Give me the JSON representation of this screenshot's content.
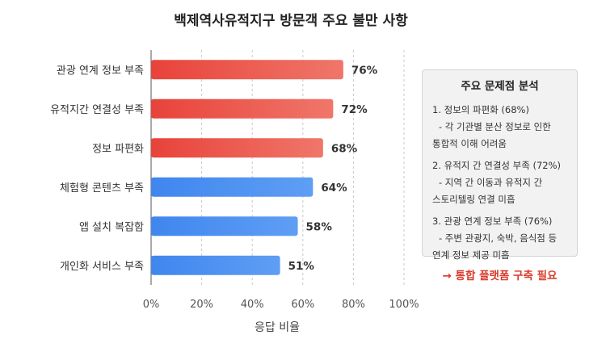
{
  "chart_data": {
    "type": "bar",
    "orientation": "horizontal",
    "title": "백제역사유적지구 방문객 주요 불만 사항",
    "xlabel": "응답 비율",
    "ylabel": "",
    "xlim": [
      0,
      100
    ],
    "ticks": [
      "0%",
      "20%",
      "40%",
      "60%",
      "80%",
      "100%"
    ],
    "tick_values": [
      0,
      20,
      40,
      60,
      80,
      100
    ],
    "categories": [
      "관광 연계 정보 부족",
      "유적지간 연결성 부족",
      "정보 파편화",
      "체험형 콘텐츠 부족",
      "앱 설치 복잡함",
      "개인화 서비스 부족"
    ],
    "values": [
      76,
      72,
      68,
      64,
      58,
      51
    ],
    "value_labels": [
      "76%",
      "72%",
      "68%",
      "64%",
      "58%",
      "51%"
    ],
    "bar_colors": [
      "#e8483a",
      "#e8483a",
      "#e8483a",
      "#4a8df0",
      "#4a8df0",
      "#4a8df0"
    ],
    "grid": true
  },
  "panel": {
    "title": "주요 문제점 분석",
    "items": [
      {
        "head": "1. 정보의 파편화 (68%)",
        "sub1": "- 각 기관별 분산 정보로 인한",
        "sub2": "통합적 이해 어려움"
      },
      {
        "head": "2. 유적지 간 연결성 부족 (72%)",
        "sub1": "- 지역 간 이동과 유적지 간",
        "sub2": "스토리텔링 연결 미흡"
      },
      {
        "head": "3. 관광 연계 정보 부족 (76%)",
        "sub1": "- 주변 관광지, 숙박, 음식점 등",
        "sub2": "연계 정보 제공 미흡"
      }
    ],
    "conclusion": "→ 통합 플랫폼 구축 필요"
  }
}
